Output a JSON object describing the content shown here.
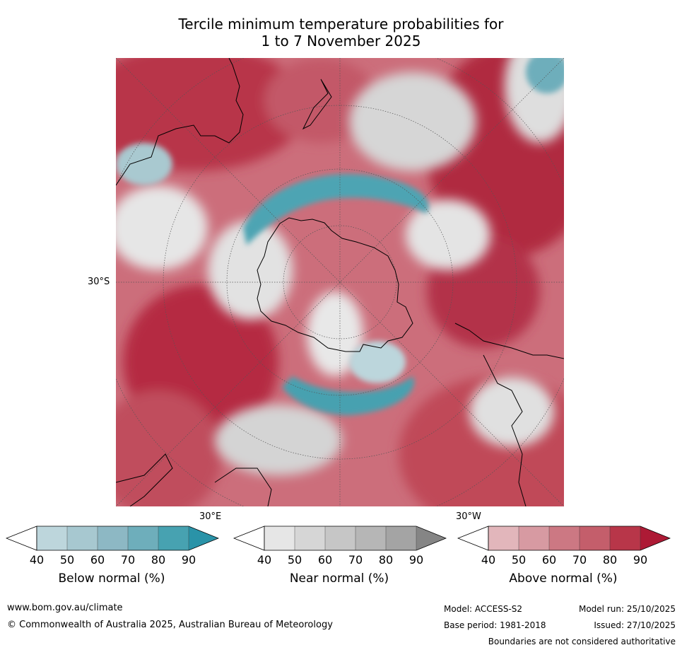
{
  "title": {
    "line1": "Tercile minimum temperature probabilities for",
    "line2": "1 to 7 November 2025"
  },
  "map": {
    "projection": "south-polar-stereographic",
    "labels": {
      "lat": "30°S",
      "lon_east": "30°E",
      "lon_west": "30°W"
    },
    "colors": {
      "land_outline": "#000000",
      "border_outline": "#808080",
      "graticule": "#555555"
    }
  },
  "colorbars": {
    "ticks": [
      "40",
      "50",
      "60",
      "70",
      "80",
      "90"
    ],
    "below": {
      "label": "Below normal (%)",
      "colors": [
        "#ffffff",
        "#bdd6dc",
        "#a7c8d0",
        "#8db8c4",
        "#6eaebb",
        "#47a2b1",
        "#2a93a8"
      ]
    },
    "near": {
      "label": "Near normal (%)",
      "colors": [
        "#ffffff",
        "#e6e6e6",
        "#d6d6d6",
        "#c6c6c6",
        "#b6b6b6",
        "#a4a4a4",
        "#858585"
      ]
    },
    "above": {
      "label": "Above normal (%)",
      "colors": [
        "#ffffff",
        "#e2b6bb",
        "#d79aa2",
        "#cc7883",
        "#c45e6b",
        "#b83649",
        "#ad1a35"
      ]
    }
  },
  "footer": {
    "website": "www.bom.gov.au/climate",
    "copyright": "© Commonwealth of Australia 2025, Australian Bureau of Meteorology",
    "model": "Model: ACCESS-S2",
    "model_run": "Model run: 25/10/2025",
    "base_period": "Base period: 1981-2018",
    "issued": "Issued: 27/10/2025",
    "disclaimer": "Boundaries are not considered authoritative"
  }
}
